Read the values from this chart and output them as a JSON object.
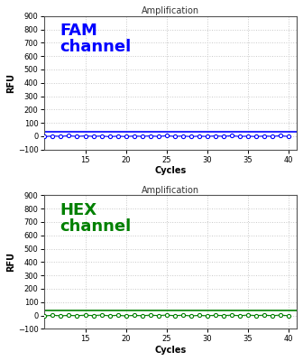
{
  "title": "Amplification",
  "xlabel": "Cycles",
  "ylabel": "RFU",
  "ylim": [
    -100,
    900
  ],
  "yticks": [
    -100,
    0,
    100,
    200,
    300,
    400,
    500,
    600,
    700,
    800,
    900
  ],
  "xlim": [
    10,
    41
  ],
  "xticks": [
    15,
    20,
    25,
    30,
    35,
    40
  ],
  "cycles_start": 10,
  "cycles_end": 40,
  "fam_label": "FAM\nchannel",
  "hex_label": "HEX\nchannel",
  "fam_color": "#0000FF",
  "hex_color": "#008000",
  "fam_threshold": 35,
  "hex_threshold": 35,
  "noise_fam": [
    -3,
    2,
    -1,
    4,
    -2,
    3,
    -1,
    2,
    -4,
    1,
    -3,
    2,
    -1,
    3,
    -2,
    4,
    -1,
    2,
    -3,
    1,
    -2,
    3,
    -1,
    4,
    -2,
    1,
    -3,
    2,
    -1,
    4,
    -2
  ],
  "noise_hex": [
    -4,
    2,
    -3,
    1,
    -2,
    3,
    -1,
    4,
    -3,
    2,
    -4,
    1,
    -2,
    3,
    -1,
    4,
    -2,
    3,
    -4,
    1,
    -3,
    2,
    -1,
    3,
    -2,
    4,
    -1,
    3,
    -2,
    4,
    -3
  ],
  "bg_color": "#ffffff",
  "grid_color": "#c8c8c8",
  "spine_color": "#555555",
  "title_fontsize": 7,
  "label_fontsize": 7,
  "tick_fontsize": 6,
  "channel_label_fontsize": 13,
  "fig_width": 3.36,
  "fig_height": 4.0,
  "dpi": 100
}
